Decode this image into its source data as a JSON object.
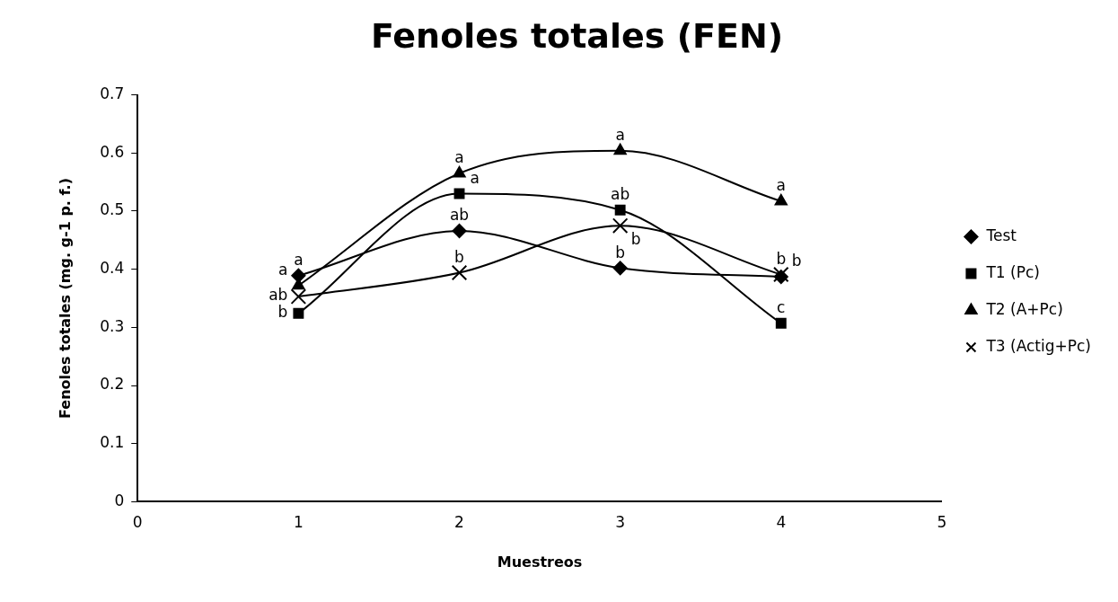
{
  "chart_data": {
    "type": "line",
    "title": "Fenoles totales (FEN)",
    "xlabel": "Muestreos",
    "ylabel": "Fenoles totales (mg. g-1 p. f.)",
    "x": [
      1,
      2,
      3,
      4
    ],
    "series": [
      {
        "name": "Test",
        "color": "#000000",
        "marker": "diamond",
        "values": [
          0.389,
          0.466,
          0.402,
          0.387
        ]
      },
      {
        "name": "T1 (Pc)",
        "color": "#000000",
        "marker": "square",
        "values": [
          0.324,
          0.53,
          0.502,
          0.307
        ]
      },
      {
        "name": "T2 (A+Pc)",
        "color": "#000000",
        "marker": "triangle",
        "values": [
          0.372,
          0.565,
          0.604,
          0.517
        ]
      },
      {
        "name": "T3 (Actig+Pc)",
        "color": "#000000",
        "marker": "cross",
        "values": [
          0.353,
          0.394,
          0.475,
          0.391
        ]
      }
    ],
    "xlim": [
      0,
      5
    ],
    "xticks": [
      0,
      1,
      2,
      3,
      4,
      5
    ],
    "ylim": [
      0,
      0.7
    ],
    "yticks": [
      0,
      0.1,
      0.2,
      0.3,
      0.4,
      0.5,
      0.6,
      0.7
    ],
    "grid": false,
    "legend": "right",
    "line_style": "solid",
    "annotations": [
      {
        "text": "a",
        "x": 1,
        "y": 0.389
      },
      {
        "text": "a",
        "x": 1,
        "y": 0.372
      },
      {
        "text": "ab",
        "x": 1,
        "y": 0.353
      },
      {
        "text": "b",
        "x": 1,
        "y": 0.324
      },
      {
        "text": "a",
        "x": 2,
        "y": 0.565
      },
      {
        "text": "a",
        "x": 2,
        "y": 0.53
      },
      {
        "text": "ab",
        "x": 2,
        "y": 0.466
      },
      {
        "text": "b",
        "x": 2,
        "y": 0.394
      },
      {
        "text": "a",
        "x": 3,
        "y": 0.604
      },
      {
        "text": "ab",
        "x": 3,
        "y": 0.502
      },
      {
        "text": "b",
        "x": 3,
        "y": 0.475
      },
      {
        "text": "b",
        "x": 3,
        "y": 0.402
      },
      {
        "text": "a",
        "x": 4,
        "y": 0.517
      },
      {
        "text": "b",
        "x": 4,
        "y": 0.391
      },
      {
        "text": "b",
        "x": 4,
        "y": 0.387
      },
      {
        "text": "c",
        "x": 4,
        "y": 0.307
      }
    ]
  }
}
